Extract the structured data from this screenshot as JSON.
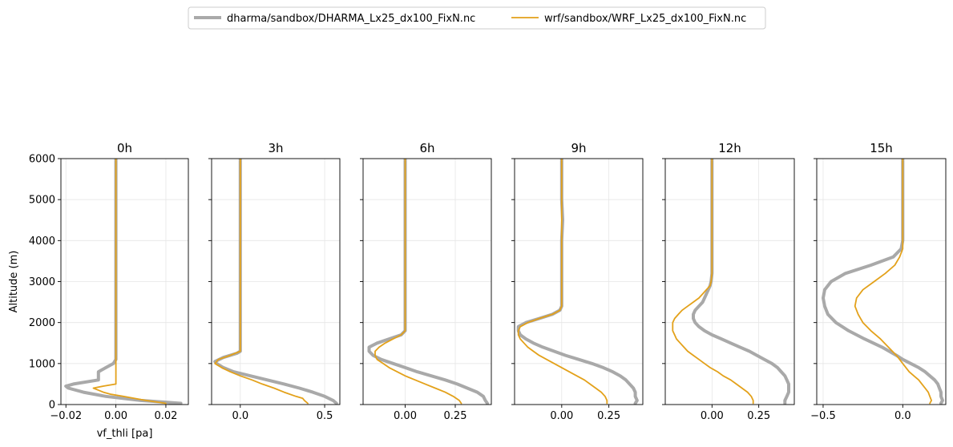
{
  "legend": {
    "entries": [
      {
        "label": "dharma/sandbox/DHARMA_Lx25_dx100_FixN.nc",
        "color": "#a9a9a9",
        "width": 4
      },
      {
        "label": "wrf/sandbox/WRF_Lx25_dx100_FixN.nc",
        "color": "#e3a11a",
        "width": 1.8
      }
    ]
  },
  "chart_data": [
    {
      "type": "line",
      "title": "0h",
      "xlabel": "vf_thli [pa]",
      "ylabel": "Altitude (m)",
      "xlim": [
        -0.022,
        0.029
      ],
      "ylim": [
        0,
        6000
      ],
      "xticks": [
        -0.02,
        0.0,
        0.02
      ],
      "xtick_labels": [
        "−0.02",
        "0.00",
        "0.02"
      ],
      "yticks": [
        0,
        1000,
        2000,
        3000,
        4000,
        5000,
        6000
      ],
      "ytick_labels": [
        "0",
        "1000",
        "2000",
        "3000",
        "4000",
        "5000",
        "6000"
      ],
      "grid": true,
      "series": [
        {
          "name": "dharma/sandbox/DHARMA_Lx25_dx100_FixN.nc",
          "y": [
            30,
            100,
            200,
            300,
            400,
            450,
            500,
            600,
            700,
            800,
            900,
            1000,
            1100,
            1200,
            1500,
            2000,
            3000,
            4000,
            5000,
            6000
          ],
          "x": [
            0.026,
            0.01,
            -0.004,
            -0.013,
            -0.019,
            -0.02,
            -0.017,
            -0.007,
            -0.007,
            -0.007,
            -0.004,
            -0.001,
            0.0,
            0.0,
            0.0,
            0.0,
            0.0,
            0.0,
            0.0,
            0.0
          ]
        },
        {
          "name": "wrf/sandbox/WRF_Lx25_dx100_FixN.nc",
          "y": [
            30,
            100,
            200,
            250,
            300,
            350,
            400,
            450,
            500,
            600,
            1000,
            2000,
            3000,
            4000,
            5000,
            6000
          ],
          "x": [
            0.02,
            0.012,
            0.003,
            -0.002,
            -0.005,
            -0.007,
            -0.009,
            -0.005,
            0.0,
            0.0,
            0.0,
            0.0,
            0.0,
            0.0,
            0.0,
            0.0
          ]
        }
      ]
    },
    {
      "type": "line",
      "title": "3h",
      "xlabel": "",
      "ylabel": "",
      "xlim": [
        -0.17,
        0.59
      ],
      "ylim": [
        0,
        6000
      ],
      "xticks": [
        0.0,
        0.5
      ],
      "xtick_labels": [
        "0.0",
        "0.5"
      ],
      "yticks": [
        0,
        1000,
        2000,
        3000,
        4000,
        5000,
        6000
      ],
      "ytick_labels": [
        "",
        "",
        "",
        "",
        "",
        "",
        ""
      ],
      "grid": true,
      "series": [
        {
          "name": "dharma/sandbox/DHARMA_Lx25_dx100_FixN.nc",
          "y": [
            30,
            100,
            200,
            300,
            400,
            500,
            600,
            700,
            800,
            900,
            1000,
            1050,
            1150,
            1250,
            1300,
            1500,
            2000,
            3000,
            4000,
            5000,
            6000
          ],
          "x": [
            0.57,
            0.55,
            0.5,
            0.43,
            0.35,
            0.26,
            0.16,
            0.06,
            -0.04,
            -0.1,
            -0.14,
            -0.15,
            -0.1,
            -0.02,
            0.0,
            0.0,
            0.0,
            0.0,
            0.0,
            0.0,
            0.0
          ]
        },
        {
          "name": "wrf/sandbox/WRF_Lx25_dx100_FixN.nc",
          "y": [
            30,
            100,
            150,
            200,
            300,
            400,
            500,
            600,
            700,
            800,
            900,
            1000,
            1100,
            1200,
            1300,
            1500,
            2000,
            3000,
            4000,
            5000,
            6000
          ],
          "x": [
            0.4,
            0.38,
            0.37,
            0.33,
            0.26,
            0.2,
            0.13,
            0.07,
            0.0,
            -0.06,
            -0.11,
            -0.15,
            -0.13,
            -0.06,
            0.0,
            0.0,
            0.0,
            0.0,
            0.0,
            0.0,
            0.0
          ]
        }
      ]
    },
    {
      "type": "line",
      "title": "6h",
      "xlabel": "",
      "ylabel": "",
      "xlim": [
        -0.21,
        0.43
      ],
      "ylim": [
        0,
        6000
      ],
      "xticks": [
        0.0,
        0.25
      ],
      "xtick_labels": [
        "0.00",
        "0.25"
      ],
      "yticks": [
        0,
        1000,
        2000,
        3000,
        4000,
        5000,
        6000
      ],
      "ytick_labels": [
        "",
        "",
        "",
        "",
        "",
        "",
        ""
      ],
      "grid": true,
      "series": [
        {
          "name": "dharma/sandbox/DHARMA_Lx25_dx100_FixN.nc",
          "y": [
            30,
            100,
            200,
            300,
            400,
            500,
            600,
            700,
            800,
            900,
            1000,
            1100,
            1200,
            1300,
            1400,
            1500,
            1600,
            1700,
            1800,
            2000,
            3000,
            4000,
            5000,
            6000
          ],
          "x": [
            0.41,
            0.4,
            0.39,
            0.36,
            0.31,
            0.26,
            0.2,
            0.13,
            0.06,
            0.0,
            -0.06,
            -0.12,
            -0.16,
            -0.18,
            -0.18,
            -0.14,
            -0.08,
            -0.02,
            0.0,
            0.0,
            0.0,
            0.0,
            0.0,
            0.0
          ]
        },
        {
          "name": "wrf/sandbox/WRF_Lx25_dx100_FixN.nc",
          "y": [
            30,
            100,
            200,
            300,
            400,
            500,
            600,
            700,
            800,
            900,
            1000,
            1100,
            1200,
            1300,
            1400,
            1500,
            1600,
            1700,
            1800,
            2000,
            3000,
            4000,
            5000,
            6000
          ],
          "x": [
            0.28,
            0.27,
            0.24,
            0.2,
            0.15,
            0.1,
            0.05,
            0.0,
            -0.04,
            -0.08,
            -0.11,
            -0.14,
            -0.15,
            -0.15,
            -0.13,
            -0.1,
            -0.06,
            -0.02,
            0.0,
            0.0,
            0.0,
            0.0,
            0.0,
            0.0
          ]
        }
      ]
    },
    {
      "type": "line",
      "title": "9h",
      "xlabel": "",
      "ylabel": "",
      "xlim": [
        -0.25,
        0.43
      ],
      "ylim": [
        0,
        6000
      ],
      "xticks": [
        0.0,
        0.25
      ],
      "xtick_labels": [
        "0.00",
        "0.25"
      ],
      "yticks": [
        0,
        1000,
        2000,
        3000,
        4000,
        5000,
        6000
      ],
      "ytick_labels": [
        "",
        "",
        "",
        "",
        "",
        "",
        ""
      ],
      "grid": true,
      "series": [
        {
          "name": "dharma/sandbox/DHARMA_Lx25_dx100_FixN.nc",
          "y": [
            30,
            100,
            200,
            300,
            400,
            500,
            600,
            700,
            800,
            900,
            1000,
            1100,
            1200,
            1300,
            1400,
            1500,
            1600,
            1700,
            1800,
            1900,
            2000,
            2100,
            2200,
            2300,
            2400,
            3000,
            4000,
            4500,
            5000,
            6000
          ],
          "x": [
            0.39,
            0.4,
            0.39,
            0.39,
            0.38,
            0.36,
            0.34,
            0.31,
            0.27,
            0.22,
            0.16,
            0.09,
            0.02,
            -0.04,
            -0.1,
            -0.15,
            -0.19,
            -0.22,
            -0.23,
            -0.23,
            -0.19,
            -0.12,
            -0.05,
            -0.01,
            0.0,
            0.0,
            0.0,
            0.005,
            0.0,
            0.0
          ]
        },
        {
          "name": "wrf/sandbox/WRF_Lx25_dx100_FixN.nc",
          "y": [
            30,
            100,
            200,
            300,
            400,
            500,
            600,
            700,
            800,
            900,
            1000,
            1100,
            1200,
            1300,
            1400,
            1500,
            1600,
            1700,
            1800,
            1900,
            2000,
            2100,
            2200,
            2300,
            2400,
            3000,
            4000,
            5000,
            6000
          ],
          "x": [
            0.24,
            0.24,
            0.23,
            0.21,
            0.18,
            0.15,
            0.12,
            0.08,
            0.04,
            0.0,
            -0.04,
            -0.08,
            -0.12,
            -0.15,
            -0.18,
            -0.2,
            -0.22,
            -0.23,
            -0.23,
            -0.22,
            -0.18,
            -0.12,
            -0.05,
            -0.01,
            0.0,
            0.0,
            0.0,
            0.0,
            0.0
          ]
        }
      ]
    },
    {
      "type": "line",
      "title": "12h",
      "xlabel": "",
      "ylabel": "",
      "xlim": [
        -0.25,
        0.44
      ],
      "ylim": [
        0,
        6000
      ],
      "xticks": [
        0.0,
        0.25
      ],
      "xtick_labels": [
        "0.00",
        "0.25"
      ],
      "yticks": [
        0,
        1000,
        2000,
        3000,
        4000,
        5000,
        6000
      ],
      "ytick_labels": [
        "",
        "",
        "",
        "",
        "",
        "",
        ""
      ],
      "grid": true,
      "series": [
        {
          "name": "dharma/sandbox/DHARMA_Lx25_dx100_FixN.nc",
          "y": [
            30,
            100,
            200,
            300,
            400,
            500,
            600,
            700,
            800,
            900,
            1000,
            1100,
            1200,
            1300,
            1400,
            1500,
            1600,
            1700,
            1800,
            1900,
            2000,
            2100,
            2200,
            2300,
            2400,
            2500,
            2600,
            2700,
            2800,
            2900,
            3000,
            3200,
            4000,
            5000,
            6000
          ],
          "x": [
            0.39,
            0.39,
            0.4,
            0.41,
            0.41,
            0.41,
            0.4,
            0.39,
            0.37,
            0.35,
            0.32,
            0.28,
            0.24,
            0.2,
            0.15,
            0.1,
            0.05,
            0.0,
            -0.04,
            -0.07,
            -0.09,
            -0.1,
            -0.1,
            -0.09,
            -0.07,
            -0.05,
            -0.04,
            -0.03,
            -0.02,
            -0.01,
            -0.005,
            0.0,
            0.0,
            0.0,
            0.0
          ]
        },
        {
          "name": "wrf/sandbox/WRF_Lx25_dx100_FixN.nc",
          "y": [
            30,
            100,
            200,
            300,
            400,
            500,
            600,
            700,
            800,
            900,
            1000,
            1100,
            1200,
            1300,
            1400,
            1500,
            1600,
            1700,
            1800,
            1900,
            2000,
            2100,
            2200,
            2300,
            2400,
            2500,
            2600,
            2700,
            2800,
            2900,
            3000,
            3200,
            4000,
            5000,
            6000
          ],
          "x": [
            0.22,
            0.22,
            0.21,
            0.19,
            0.16,
            0.13,
            0.1,
            0.06,
            0.03,
            -0.01,
            -0.04,
            -0.07,
            -0.1,
            -0.13,
            -0.15,
            -0.17,
            -0.19,
            -0.2,
            -0.21,
            -0.21,
            -0.21,
            -0.2,
            -0.18,
            -0.16,
            -0.13,
            -0.1,
            -0.07,
            -0.05,
            -0.03,
            -0.01,
            -0.005,
            0.0,
            0.0,
            0.0,
            0.0
          ]
        }
      ]
    },
    {
      "type": "line",
      "title": "15h",
      "xlabel": "",
      "ylabel": "",
      "xlim": [
        -0.54,
        0.27
      ],
      "ylim": [
        0,
        6000
      ],
      "xticks": [
        -0.5,
        0.0
      ],
      "xtick_labels": [
        "−0.5",
        "0.0"
      ],
      "yticks": [
        0,
        1000,
        2000,
        3000,
        4000,
        5000,
        6000
      ],
      "ytick_labels": [
        "",
        "",
        "",
        "",
        "",
        "",
        ""
      ],
      "grid": true,
      "series": [
        {
          "name": "dharma/sandbox/DHARMA_Lx25_dx100_FixN.nc",
          "y": [
            30,
            100,
            200,
            300,
            400,
            500,
            600,
            700,
            800,
            900,
            1000,
            1100,
            1200,
            1400,
            1600,
            1800,
            2000,
            2200,
            2400,
            2600,
            2800,
            3000,
            3200,
            3400,
            3600,
            3800,
            4000,
            5000,
            6000
          ],
          "x": [
            0.24,
            0.25,
            0.24,
            0.24,
            0.23,
            0.22,
            0.2,
            0.17,
            0.14,
            0.1,
            0.05,
            0.0,
            -0.04,
            -0.13,
            -0.24,
            -0.34,
            -0.42,
            -0.47,
            -0.49,
            -0.5,
            -0.49,
            -0.45,
            -0.36,
            -0.2,
            -0.06,
            -0.01,
            0.0,
            0.0,
            0.0
          ]
        },
        {
          "name": "wrf/sandbox/WRF_Lx25_dx100_FixN.nc",
          "y": [
            30,
            100,
            200,
            300,
            400,
            500,
            600,
            700,
            800,
            900,
            1000,
            1100,
            1200,
            1400,
            1600,
            1800,
            2000,
            2200,
            2400,
            2600,
            2800,
            3000,
            3200,
            3400,
            3600,
            3800,
            4000,
            5000,
            6000
          ],
          "x": [
            0.17,
            0.18,
            0.17,
            0.16,
            0.14,
            0.12,
            0.1,
            0.07,
            0.04,
            0.02,
            0.0,
            -0.02,
            -0.04,
            -0.09,
            -0.14,
            -0.2,
            -0.25,
            -0.28,
            -0.3,
            -0.29,
            -0.25,
            -0.18,
            -0.11,
            -0.05,
            -0.02,
            0.0,
            0.0,
            0.0,
            0.0
          ]
        }
      ]
    }
  ]
}
